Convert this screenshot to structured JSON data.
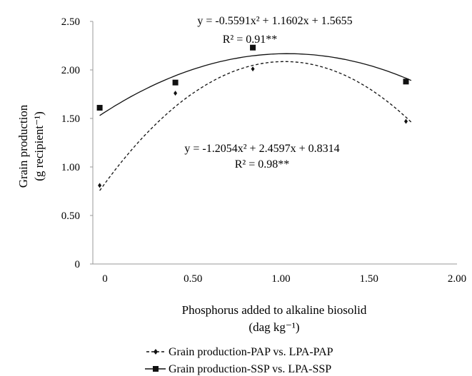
{
  "chart_data": {
    "type": "scatter",
    "x": [
      0,
      0.43,
      0.87,
      1.74
    ],
    "series": [
      {
        "name": "Grain production-PAP vs. LPA-PAP",
        "marker": "diamond",
        "line": "dashed",
        "values": [
          0.81,
          1.76,
          2.01,
          1.47
        ],
        "fit": {
          "a": -1.2054,
          "b": 2.4597,
          "c": 0.8314
        },
        "equation": "y = -1.2054x² + 2.4597x + 0.8314",
        "r2": "R² = 0.98**"
      },
      {
        "name": "Grain production-SSP vs. LPA-SSP",
        "marker": "square",
        "line": "solid",
        "values": [
          1.61,
          1.87,
          2.23,
          1.88
        ],
        "fit": {
          "a": -0.5591,
          "b": 1.1602,
          "c": 1.5655
        },
        "equation": "y = -0.5591x² + 1.1602x + 1.5655",
        "r2": "R² = 0.91**"
      }
    ],
    "xlim": [
      0,
      2.0
    ],
    "ylim": [
      0,
      2.5
    ],
    "xticks": [
      "0",
      "0.50",
      "1.00",
      "1.50",
      "2.00"
    ],
    "yticks": [
      "0",
      "0.50",
      "1.00",
      "1.50",
      "2.00",
      "2.50"
    ],
    "xlabel": "Phosphorus added to alkaline biosolid",
    "xlabel_unit": "(dag kg⁻¹)",
    "ylabel": "Grain production",
    "ylabel_unit": "(g recipient⁻¹)",
    "grid": false,
    "legend_position": "bottom",
    "colors": {
      "series": "#111111",
      "axis": "#999999"
    }
  }
}
